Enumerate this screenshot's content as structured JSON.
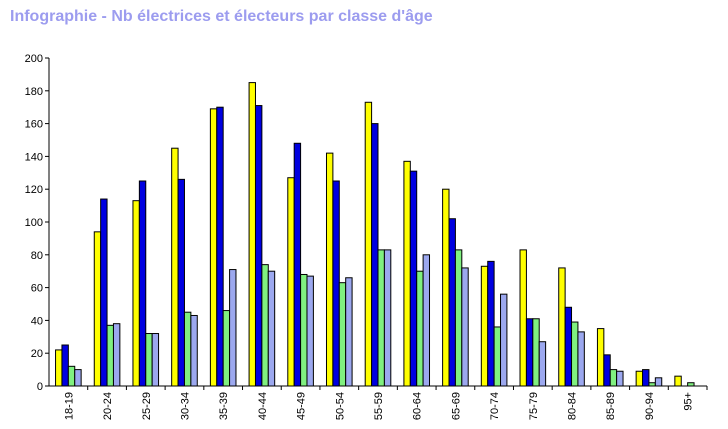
{
  "chart_data": {
    "type": "bar",
    "title": "Infographie - Nb électrices et électeurs par classe d'âge",
    "xlabel": "",
    "ylabel": "",
    "ylim": [
      0,
      200
    ],
    "yticks": [
      0,
      20,
      40,
      60,
      80,
      100,
      120,
      140,
      160,
      180,
      200
    ],
    "grid": false,
    "legend": "none",
    "categories": [
      "18-19",
      "20-24",
      "25-29",
      "30-34",
      "35-39",
      "40-44",
      "45-49",
      "50-54",
      "55-59",
      "60-64",
      "65-69",
      "70-74",
      "75-79",
      "80-84",
      "85-89",
      "90-94",
      "95+"
    ],
    "series": [
      {
        "color": "#ffff00",
        "values": [
          22,
          94,
          113,
          145,
          169,
          185,
          127,
          142,
          173,
          137,
          120,
          73,
          83,
          72,
          35,
          9,
          6
        ]
      },
      {
        "color": "#0000e0",
        "values": [
          25,
          114,
          125,
          126,
          170,
          171,
          148,
          125,
          160,
          131,
          102,
          76,
          41,
          48,
          19,
          10,
          0
        ]
      },
      {
        "color": "#80f080",
        "values": [
          12,
          37,
          32,
          45,
          46,
          74,
          68,
          63,
          83,
          70,
          83,
          36,
          41,
          39,
          10,
          2,
          2
        ]
      },
      {
        "color": "#9ca8ef",
        "values": [
          10,
          38,
          32,
          43,
          71,
          70,
          67,
          66,
          83,
          80,
          72,
          56,
          27,
          33,
          9,
          5,
          0
        ]
      }
    ]
  }
}
